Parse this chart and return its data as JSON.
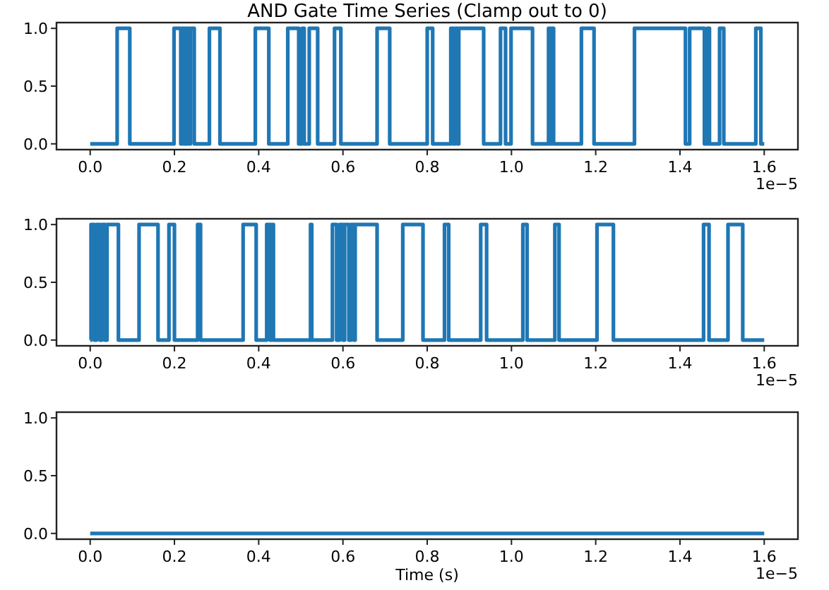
{
  "chart_data": [
    {
      "type": "step",
      "title": "AND Gate Time Series (Clamp out to 0)",
      "x": [
        0,
        0.064,
        0.094,
        0.199,
        0.215,
        0.218,
        0.222,
        0.225,
        0.228,
        0.231,
        0.235,
        0.238,
        0.247,
        0.283,
        0.308,
        0.392,
        0.424,
        0.469,
        0.495,
        0.503,
        0.508,
        0.52,
        0.54,
        0.58,
        0.595,
        0.681,
        0.711,
        0.8,
        0.813,
        0.856,
        0.862,
        0.866,
        0.872,
        0.875,
        0.934,
        0.974,
        0.986,
        0.999,
        1.05,
        1.088,
        1.092,
        1.095,
        1.1,
        1.166,
        1.196,
        1.292,
        1.413,
        1.423,
        1.458,
        1.465,
        1.47,
        1.494,
        1.504,
        1.58,
        1.592,
        1.6
      ],
      "series": [
        {
          "color": "#1f77b4",
          "values": [
            0,
            1,
            0,
            1,
            0,
            1,
            0,
            1,
            0,
            1,
            0,
            1,
            0,
            1,
            0,
            1,
            0,
            1,
            0,
            1,
            0,
            1,
            0,
            1,
            0,
            1,
            0,
            1,
            0,
            1,
            0,
            1,
            0,
            1,
            0,
            1,
            0,
            1,
            0,
            1,
            0,
            1,
            0,
            1,
            0,
            1,
            0,
            1,
            0,
            1,
            0,
            1,
            0,
            1,
            0,
            0
          ]
        }
      ],
      "xlim": [
        -0.08,
        1.68
      ],
      "ylim": [
        -0.05,
        1.05
      ],
      "xticks": [
        {
          "value": 0,
          "label": "0.0"
        },
        {
          "value": 0.2,
          "label": "0.2"
        },
        {
          "value": 0.4,
          "label": "0.4"
        },
        {
          "value": 0.6,
          "label": "0.6"
        },
        {
          "value": 0.8,
          "label": "0.8"
        },
        {
          "value": 1,
          "label": "1.0"
        },
        {
          "value": 1.2,
          "label": "1.2"
        },
        {
          "value": 1.4,
          "label": "1.4"
        },
        {
          "value": 1.6,
          "label": "1.6"
        }
      ],
      "yticks": [
        {
          "value": 0,
          "label": "0.0"
        },
        {
          "value": 0.5,
          "label": "0.5"
        },
        {
          "value": 1,
          "label": "1.0"
        }
      ],
      "annotations": [
        "1e−5"
      ]
    },
    {
      "type": "step",
      "x": [
        0,
        0.002,
        0.01,
        0.015,
        0.023,
        0.028,
        0.035,
        0.04,
        0.067,
        0.116,
        0.161,
        0.187,
        0.2,
        0.255,
        0.262,
        0.363,
        0.394,
        0.419,
        0.427,
        0.431,
        0.435,
        0.523,
        0.526,
        0.575,
        0.585,
        0.592,
        0.6,
        0.604,
        0.614,
        0.619,
        0.626,
        0.629,
        0.681,
        0.742,
        0.79,
        0.841,
        0.851,
        0.927,
        0.941,
        1.027,
        1.037,
        1.103,
        1.113,
        1.203,
        1.242,
        1.456,
        1.469,
        1.514,
        1.549,
        1.6
      ],
      "series": [
        {
          "color": "#1f77b4",
          "values": [
            0,
            1,
            0,
            1,
            0,
            1,
            0,
            1,
            0,
            1,
            0,
            1,
            0,
            1,
            0,
            1,
            0,
            1,
            0,
            1,
            0,
            1,
            0,
            1,
            0,
            1,
            0,
            1,
            0,
            1,
            0,
            1,
            0,
            1,
            0,
            1,
            0,
            1,
            0,
            1,
            0,
            1,
            0,
            1,
            0,
            1,
            0,
            1,
            0,
            0
          ]
        }
      ],
      "xlim": [
        -0.08,
        1.68
      ],
      "ylim": [
        -0.05,
        1.05
      ],
      "xticks": [
        {
          "value": 0,
          "label": "0.0"
        },
        0.2,
        0.4,
        0.6,
        0.8,
        {
          "value": 1,
          "label": "1.0"
        },
        1.2,
        1.4,
        1.6
      ],
      "yticks": [
        {
          "value": 0,
          "label": "0.0"
        },
        0.5,
        {
          "value": 1,
          "label": "1.0"
        }
      ],
      "annotations": [
        "1e−5"
      ]
    },
    {
      "type": "step",
      "xlabel": "Time (s)",
      "x": [
        0,
        1.6
      ],
      "series": [
        {
          "color": "#1f77b4",
          "values": [
            0,
            0
          ]
        }
      ],
      "xlim": [
        -0.08,
        1.68
      ],
      "ylim": [
        -0.05,
        1.05
      ],
      "xticks": [
        {
          "value": 0,
          "label": "0.0"
        },
        0.2,
        0.4,
        0.6,
        0.8,
        {
          "value": 1,
          "label": "1.0"
        },
        1.2,
        1.4,
        1.6
      ],
      "yticks": [
        {
          "value": 0,
          "label": "0.0"
        },
        0.5,
        {
          "value": 1,
          "label": "1.0"
        }
      ],
      "annotations": [
        "1e−5"
      ]
    }
  ]
}
